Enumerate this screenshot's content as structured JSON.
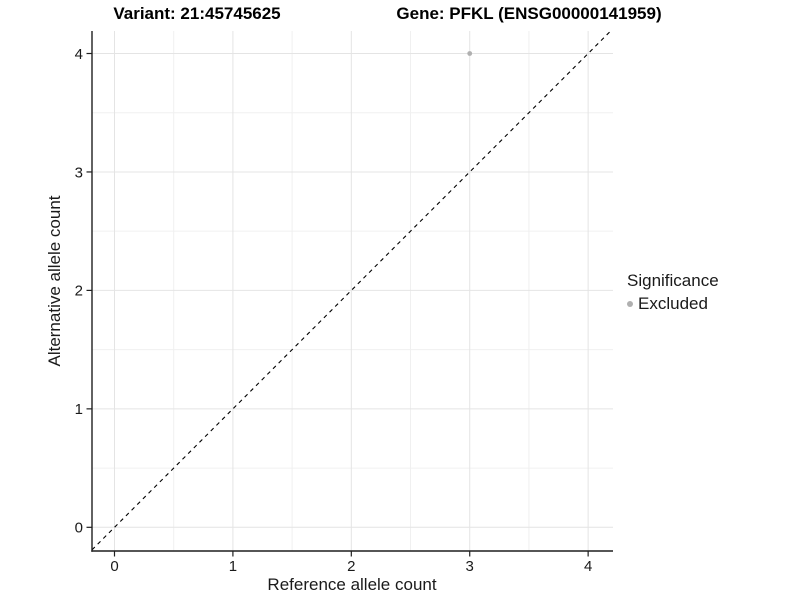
{
  "header": {
    "variant_title": "Variant: 21:45745625",
    "gene_title": "Gene: PFKL (ENSG00000141959)"
  },
  "chart_data": {
    "type": "scatter",
    "xlabel": "Reference allele count",
    "ylabel": "Alternative allele count",
    "xlim": [
      -0.19,
      4.21
    ],
    "ylim": [
      -0.2,
      4.19
    ],
    "x_ticks": [
      0,
      1,
      2,
      3,
      4
    ],
    "y_ticks": [
      0,
      1,
      2,
      3,
      4
    ],
    "x_minor_gridlines": [
      0.5,
      1.5,
      2.5,
      3.5
    ],
    "y_minor_gridlines": [
      0.5,
      1.5,
      2.5,
      3.5
    ],
    "grid": true,
    "points": [
      {
        "x": 3,
        "y": 4,
        "series": "Excluded"
      }
    ],
    "reference_line": {
      "type": "identity",
      "style": "dashed",
      "x1": -0.19,
      "y1": -0.19,
      "x2": 4.19,
      "y2": 4.19
    },
    "legend": {
      "title": "Significance",
      "position": "right",
      "items": [
        {
          "label": "Excluded",
          "color": "#b0b0b0",
          "marker": "circle"
        }
      ]
    },
    "colors": {
      "point": "#b0b0b0",
      "grid_major": "#e4e4e4",
      "grid_minor": "#f0f0f0",
      "axis": "#1f1f1f",
      "reference_line": "#000000",
      "tick_label": "#1a1a1a"
    }
  }
}
